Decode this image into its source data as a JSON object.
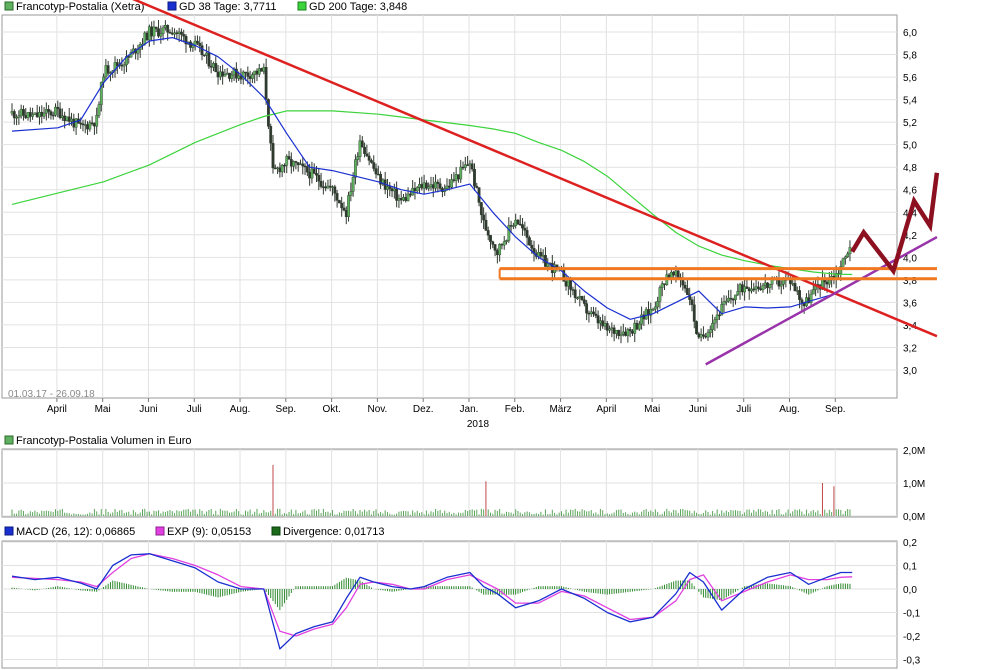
{
  "price_panel": {
    "legend": [
      {
        "text": "Francotyp-Postalia (Xetra)",
        "color": "#4a9a4a"
      },
      {
        "text": "GD 38 Tage: 3,7711",
        "color": "#1a2fd0"
      },
      {
        "text": "GD 200 Tage: 3,848",
        "color": "#3cd43c"
      }
    ],
    "date_range": "01.03.17 - 26.09.18",
    "year_label": "2018"
  },
  "volume_panel": {
    "legend": [
      {
        "text": "Francotyp-Postalia Volumen in Euro",
        "color": "#4a9a4a"
      }
    ]
  },
  "macd_panel": {
    "legend": [
      {
        "text": "MACD (26, 12): 0,06865",
        "color": "#1a2fd0"
      },
      {
        "text": "EXP (9): 0,05153",
        "color": "#e040e0"
      },
      {
        "text": "Divergence: 0,01713",
        "color": "#1a6a1a"
      }
    ]
  },
  "colors": {
    "price_bar": "#2f3a2f",
    "price_up": "#5fb05f",
    "ma38": "#1a2fd0",
    "ma200": "#3cd43c",
    "trend_down": "#dd2020",
    "trend_up": "#9933aa",
    "support": "#f07820",
    "forecast": "#8c1020",
    "volume": "#5aa55a",
    "volume_high": "#c04848",
    "macd": "#1a2fd0",
    "exp": "#e040e0",
    "divergence": "#2e8a2e"
  },
  "chart_data": [
    {
      "type": "line",
      "title": "Francotyp-Postalia (Xetra)",
      "x_ticks": [
        "April",
        "Mai",
        "Juni",
        "Juli",
        "Aug.",
        "Sep.",
        "Okt.",
        "Nov.",
        "Dez.",
        "Jan.",
        "Feb.",
        "März",
        "April",
        "Mai",
        "Juni",
        "Juli",
        "Aug.",
        "Sep."
      ],
      "y_ticks": [
        "6,0",
        "5,8",
        "5,6",
        "5,4",
        "5,2",
        "5,0",
        "4,8",
        "4,6",
        "4,4",
        "4,2",
        "4,0",
        "3,8",
        "3,6",
        "3,4",
        "3,2",
        "3,0"
      ],
      "ylim": [
        2.85,
        6.15
      ],
      "x_range": [
        0,
        19
      ],
      "series": [
        {
          "name": "Francotyp-Postalia (Xetra)",
          "x": [
            0,
            0.5,
            1,
            1.5,
            1.85,
            2,
            2.5,
            3,
            3.5,
            4,
            4.5,
            5,
            5.5,
            5.7,
            6,
            6.5,
            7,
            7.3,
            7.6,
            8,
            8.5,
            9,
            9.5,
            10,
            10.3,
            10.6,
            11,
            11.5,
            12,
            12.5,
            13,
            13.5,
            14,
            14.3,
            14.6,
            14.8,
            15,
            15.5,
            16,
            16.5,
            17,
            17.3,
            17.6,
            18,
            18.2,
            18.35
          ],
          "y": [
            5.28,
            5.25,
            5.3,
            5.15,
            5.22,
            5.65,
            5.75,
            6.0,
            6.02,
            5.88,
            5.65,
            5.62,
            5.65,
            4.75,
            4.85,
            4.75,
            4.6,
            4.4,
            5.05,
            4.7,
            4.5,
            4.65,
            4.62,
            4.85,
            4.3,
            4.05,
            4.35,
            4.0,
            3.85,
            3.55,
            3.35,
            3.35,
            3.55,
            3.85,
            3.82,
            3.65,
            3.25,
            3.55,
            3.75,
            3.75,
            3.8,
            3.58,
            3.75,
            3.85,
            4.0,
            4.18
          ]
        },
        {
          "name": "GD 38 Tage",
          "x": [
            0,
            1,
            1.5,
            2,
            2.5,
            3,
            3.5,
            4,
            4.5,
            5,
            5.5,
            6,
            6.5,
            7,
            7.5,
            8,
            8.5,
            9,
            9.5,
            10,
            10.5,
            11,
            11.5,
            12,
            12.5,
            13,
            13.5,
            14,
            14.5,
            15,
            15.5,
            16,
            16.5,
            17,
            17.5,
            18,
            18.35
          ],
          "y": [
            5.12,
            5.15,
            5.22,
            5.55,
            5.78,
            5.92,
            5.95,
            5.88,
            5.78,
            5.62,
            5.42,
            5.1,
            4.8,
            4.77,
            4.72,
            4.67,
            4.6,
            4.56,
            4.6,
            4.65,
            4.4,
            4.18,
            4.0,
            3.88,
            3.7,
            3.55,
            3.45,
            3.5,
            3.6,
            3.7,
            3.5,
            3.56,
            3.55,
            3.56,
            3.62,
            3.68,
            3.77
          ]
        },
        {
          "name": "GD 200 Tage",
          "x": [
            0,
            1,
            2,
            3,
            4,
            5,
            5.5,
            6,
            7,
            8,
            9,
            10,
            10.5,
            11,
            11.5,
            12,
            12.5,
            13,
            13.5,
            14,
            14.5,
            15,
            15.5,
            16,
            16.5,
            17,
            17.5,
            18,
            18.35
          ],
          "y": [
            4.47,
            4.57,
            4.67,
            4.82,
            5.02,
            5.18,
            5.25,
            5.3,
            5.3,
            5.27,
            5.22,
            5.17,
            5.14,
            5.1,
            5.02,
            4.95,
            4.85,
            4.72,
            4.55,
            4.38,
            4.22,
            4.1,
            4.02,
            3.97,
            3.93,
            3.9,
            3.87,
            3.85,
            3.848
          ]
        }
      ],
      "annotations": [
        {
          "kind": "trendline_down",
          "from": [
            2.6,
            6.3
          ],
          "to": [
            20.2,
            3.3
          ]
        },
        {
          "kind": "trendline_up",
          "from": [
            15.15,
            3.05
          ],
          "to": [
            20.2,
            4.18
          ]
        },
        {
          "kind": "support_zone",
          "from_x": 10.65,
          "to_x": 20.2,
          "y": [
            3.9,
            3.81
          ]
        },
        {
          "kind": "forecast_zigzag",
          "x": [
            18.35,
            18.6,
            19.25,
            19.7,
            20.05,
            20.2
          ],
          "y": [
            4.05,
            4.22,
            3.88,
            4.5,
            4.28,
            4.75
          ]
        }
      ]
    },
    {
      "type": "bar",
      "title": "Francotyp-Postalia Volumen in Euro",
      "y_ticks": [
        "2,0M",
        "1,0M",
        "0,0M"
      ],
      "ylim": [
        0,
        2.0
      ],
      "x_range": [
        0,
        19
      ],
      "peaks": [
        {
          "x": 5.7,
          "value": 1.55
        },
        {
          "x": 10.35,
          "value": 1.05
        },
        {
          "x": 17.7,
          "value": 1.0
        },
        {
          "x": 17.95,
          "value": 0.9
        },
        {
          "x": 18.35,
          "value": 0.3
        }
      ],
      "baseline_level": 0.2
    },
    {
      "type": "line",
      "title": "MACD (26, 12)",
      "y_ticks": [
        "0,2",
        "0,1",
        "0,0",
        "-0,1",
        "-0,2",
        "-0,3"
      ],
      "ylim": [
        -0.3,
        0.2
      ],
      "x_range": [
        0,
        19
      ],
      "series": [
        {
          "name": "MACD (26, 12)",
          "x": [
            0,
            0.5,
            1,
            1.5,
            1.85,
            2.2,
            2.6,
            3,
            3.5,
            4,
            4.5,
            5,
            5.5,
            5.85,
            6.2,
            6.6,
            7,
            7.3,
            7.6,
            7.9,
            8.3,
            8.7,
            9,
            9.5,
            10,
            10.3,
            10.6,
            11,
            11.5,
            12,
            12.5,
            13,
            13.5,
            14,
            14.5,
            14.8,
            15.1,
            15.5,
            16,
            16.5,
            17,
            17.4,
            17.8,
            18.1,
            18.35
          ],
          "y": [
            0.055,
            0.04,
            0.05,
            0.025,
            0.0,
            0.1,
            0.145,
            0.15,
            0.12,
            0.09,
            0.03,
            0.0,
            0.0,
            -0.255,
            -0.19,
            -0.16,
            -0.14,
            -0.04,
            0.05,
            0.03,
            0.01,
            0.0,
            0.01,
            0.05,
            0.07,
            0.01,
            -0.02,
            -0.08,
            -0.05,
            0.0,
            -0.04,
            -0.1,
            -0.14,
            -0.12,
            -0.02,
            0.07,
            0.03,
            -0.09,
            0.0,
            0.05,
            0.07,
            0.02,
            0.05,
            0.07,
            0.07
          ]
        },
        {
          "name": "EXP (9)",
          "x": [
            0,
            0.5,
            1,
            1.5,
            1.85,
            2.2,
            2.6,
            3,
            3.5,
            4,
            4.5,
            5,
            5.5,
            5.85,
            6.2,
            6.6,
            7,
            7.3,
            7.6,
            7.9,
            8.3,
            8.7,
            9,
            9.5,
            10,
            10.3,
            10.6,
            11,
            11.5,
            12,
            12.5,
            13,
            13.5,
            14,
            14.5,
            14.8,
            15.1,
            15.5,
            16,
            16.5,
            17,
            17.4,
            17.8,
            18.1,
            18.35
          ],
          "y": [
            0.05,
            0.045,
            0.04,
            0.03,
            0.01,
            0.07,
            0.13,
            0.15,
            0.13,
            0.1,
            0.06,
            0.01,
            0.0,
            -0.18,
            -0.2,
            -0.17,
            -0.15,
            -0.08,
            0.02,
            0.03,
            0.02,
            0.0,
            0.0,
            0.04,
            0.06,
            0.03,
            0.0,
            -0.06,
            -0.06,
            -0.01,
            -0.03,
            -0.08,
            -0.13,
            -0.12,
            -0.05,
            0.04,
            0.06,
            -0.05,
            -0.01,
            0.03,
            0.06,
            0.04,
            0.04,
            0.05,
            0.052
          ]
        }
      ]
    }
  ]
}
